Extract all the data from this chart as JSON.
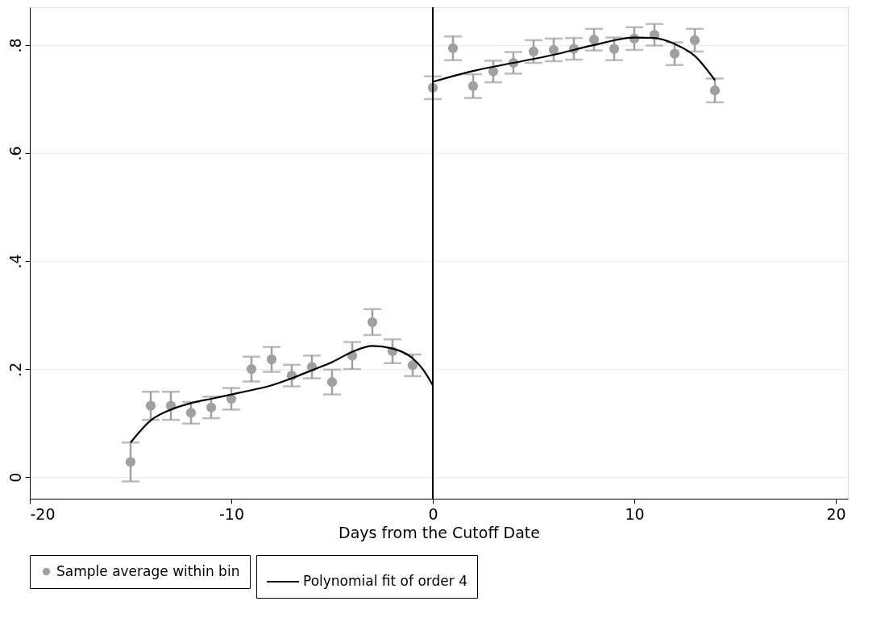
{
  "chart_data": {
    "type": "scatter",
    "xlabel": "Days from the Cutoff Date",
    "xlim": [
      -20,
      20.6
    ],
    "xticks": [
      -20,
      -10,
      0,
      10,
      20
    ],
    "ylim": [
      -0.04,
      0.87
    ],
    "yticks": [
      {
        "value": 0,
        "label": "0"
      },
      {
        "value": 0.2,
        "label": ".2"
      },
      {
        "value": 0.4,
        "label": ".4"
      },
      {
        "value": 0.6,
        "label": ".6"
      },
      {
        "value": 0.8,
        "label": ".8"
      }
    ],
    "grid": "y",
    "legend": "bottom",
    "ref_lines": [
      {
        "axis": "x",
        "value": 0,
        "color": "#000000"
      }
    ],
    "series": [
      {
        "name": "Sample average within bin",
        "marker": "circle",
        "color": "#a0a0a0",
        "x": [
          -15,
          -14,
          -13,
          -12,
          -11,
          -10,
          -9,
          -8,
          -7,
          -6,
          -5,
          -4,
          -3,
          -2,
          -1,
          0,
          1,
          2,
          3,
          4,
          5,
          6,
          7,
          8,
          9,
          10,
          11,
          12,
          13,
          14
        ],
        "values": [
          0.028,
          0.132,
          0.132,
          0.119,
          0.129,
          0.145,
          0.2,
          0.218,
          0.188,
          0.204,
          0.176,
          0.225,
          0.287,
          0.233,
          0.207,
          0.721,
          0.794,
          0.724,
          0.751,
          0.767,
          0.788,
          0.791,
          0.793,
          0.81,
          0.793,
          0.812,
          0.819,
          0.784,
          0.809,
          0.716
        ],
        "errors": [
          0.036,
          0.026,
          0.026,
          0.02,
          0.02,
          0.02,
          0.023,
          0.023,
          0.02,
          0.021,
          0.023,
          0.025,
          0.024,
          0.022,
          0.02,
          0.021,
          0.022,
          0.022,
          0.02,
          0.02,
          0.021,
          0.021,
          0.02,
          0.02,
          0.021,
          0.021,
          0.02,
          0.021,
          0.021,
          0.022
        ]
      },
      {
        "type": "line",
        "name": "Polynomial fit of order 4",
        "marker": "none",
        "line_style": "solid",
        "color": "#000000",
        "x": [
          -15,
          -14,
          -13,
          -12,
          -11,
          -10,
          -9,
          -8,
          -7,
          -6,
          -5,
          -4,
          -3,
          -2,
          -1,
          -0.5,
          0
        ],
        "values": [
          0.064,
          0.105,
          0.125,
          0.137,
          0.145,
          0.153,
          0.161,
          0.17,
          0.183,
          0.198,
          0.213,
          0.232,
          0.243,
          0.238,
          0.22,
          0.2,
          0.17
        ]
      },
      {
        "type": "line",
        "marker": "none",
        "line_style": "solid",
        "color": "#000000",
        "x": [
          0,
          2,
          4,
          6,
          8,
          10,
          11,
          12,
          13,
          14
        ],
        "values": [
          0.732,
          0.752,
          0.767,
          0.782,
          0.8,
          0.814,
          0.813,
          0.802,
          0.78,
          0.735
        ]
      }
    ]
  }
}
